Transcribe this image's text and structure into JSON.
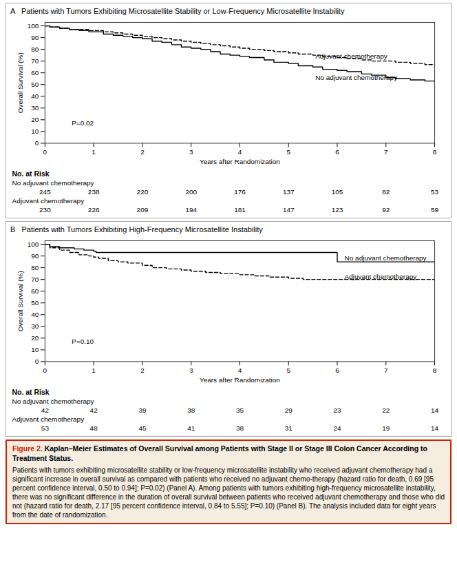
{
  "chart_data": [
    {
      "type": "line",
      "title": "A   Patients with Tumors Exhibiting Microsatellite Stability or Low-Frequency Microsatellite Instability",
      "xlabel": "Years after Randomization",
      "ylabel": "Overall Survival (%)",
      "xlim": [
        0,
        8
      ],
      "xticks": [
        0,
        1,
        2,
        3,
        4,
        5,
        6,
        7,
        8
      ],
      "ylim": [
        0,
        103
      ],
      "yticks": [
        0,
        10,
        20,
        30,
        40,
        50,
        60,
        70,
        80,
        90,
        100
      ],
      "grid": false,
      "series": [
        {
          "name": "No adjuvant chemotherapy",
          "color": "black",
          "line_style": "solid",
          "x": [
            0,
            0.1,
            0.3,
            0.5,
            0.7,
            0.9,
            1.0,
            1.2,
            1.4,
            1.6,
            1.8,
            2.0,
            2.2,
            2.4,
            2.6,
            2.8,
            3.0,
            3.2,
            3.4,
            3.6,
            3.8,
            4.0,
            4.2,
            4.5,
            4.7,
            5.0,
            5.2,
            5.5,
            5.7,
            6.0,
            6.2,
            6.5,
            6.7,
            7.0,
            7.2,
            7.5,
            7.8,
            8.0
          ],
          "values": [
            100,
            99,
            98,
            97,
            96,
            95,
            95,
            93,
            92,
            91,
            90,
            89,
            87,
            86,
            84,
            82,
            81,
            80,
            78,
            76,
            75,
            74,
            73,
            71,
            69,
            68,
            66,
            65,
            63,
            62,
            61,
            59,
            58,
            56,
            55,
            54,
            53,
            52
          ]
        },
        {
          "name": "Adjuvant chemotherapy",
          "color": "black",
          "line_style": "dashed",
          "x": [
            0,
            0.1,
            0.3,
            0.5,
            0.7,
            0.9,
            1.0,
            1.2,
            1.4,
            1.6,
            1.8,
            2.0,
            2.2,
            2.4,
            2.6,
            2.8,
            3.0,
            3.2,
            3.4,
            3.6,
            3.8,
            4.0,
            4.2,
            4.5,
            4.7,
            5.0,
            5.2,
            5.5,
            5.7,
            6.0,
            6.2,
            6.5,
            6.7,
            7.0,
            7.2,
            7.5,
            7.8,
            8.0
          ],
          "values": [
            100,
            99,
            98,
            97,
            97,
            96,
            96,
            95,
            94,
            93,
            92,
            91,
            90,
            89,
            88,
            87,
            86,
            85,
            84,
            83,
            82,
            81,
            80,
            79,
            78,
            77,
            76,
            75,
            74,
            73,
            72,
            71,
            70,
            70,
            69,
            68,
            67,
            67
          ]
        }
      ],
      "annotations": [
        {
          "text": "P=0.02",
          "x": 0.55,
          "y": 17
        },
        {
          "text": "No adjuvant chemotherapy",
          "x": 5.55,
          "y": 56
        },
        {
          "text": "Adjuvant chemotherapy",
          "x": 5.55,
          "y": 74
        }
      ],
      "risk_table": {
        "title": "No. at Risk",
        "x": [
          0,
          1,
          2,
          3,
          4,
          5,
          6,
          7,
          8
        ],
        "rows": [
          {
            "name": "No adjuvant chemotherapy",
            "values": [
              245,
              238,
              220,
              200,
              176,
              137,
              105,
              82,
              53
            ]
          },
          {
            "name": "Adjuvant chemotherapy",
            "values": [
              230,
              226,
              209,
              194,
              181,
              147,
              123,
              92,
              59
            ]
          }
        ]
      }
    },
    {
      "type": "line",
      "title": "B   Patients with Tumors Exhibiting High-Frequency Microsatellite Instability",
      "xlabel": "Years after Randomization",
      "ylabel": "Overall Survival (%)",
      "xlim": [
        0,
        8
      ],
      "xticks": [
        0,
        1,
        2,
        3,
        4,
        5,
        6,
        7,
        8
      ],
      "ylim": [
        0,
        103
      ],
      "yticks": [
        0,
        10,
        20,
        30,
        40,
        50,
        60,
        70,
        80,
        90,
        100
      ],
      "grid": false,
      "series": [
        {
          "name": "No adjuvant chemotherapy",
          "color": "black",
          "line_style": "solid",
          "x": [
            0,
            0.1,
            0.3,
            0.6,
            0.8,
            1.0,
            1.05,
            1.1,
            1.3,
            1.6,
            2.0,
            2.5,
            3.0,
            3.5,
            4.0,
            4.5,
            5.0,
            5.5,
            5.7,
            6.0,
            6.5,
            7.0,
            7.5,
            8.0
          ],
          "values": [
            100,
            98,
            97,
            96,
            95,
            94,
            93,
            93,
            93,
            93,
            93,
            93,
            93,
            93,
            93,
            93,
            93,
            93,
            93,
            85,
            85,
            85,
            85,
            85
          ]
        },
        {
          "name": "Adjuvant chemotherapy",
          "color": "black",
          "line_style": "dashed",
          "x": [
            0,
            0.1,
            0.3,
            0.5,
            0.7,
            0.9,
            1.0,
            1.1,
            1.3,
            1.5,
            1.7,
            2.0,
            2.2,
            2.5,
            2.8,
            3.0,
            3.3,
            3.6,
            4.0,
            4.3,
            4.6,
            5.0,
            5.3,
            5.6,
            6.0,
            6.5,
            7.0,
            7.5,
            8.0
          ],
          "values": [
            100,
            97,
            95,
            93,
            91,
            90,
            89,
            88,
            86,
            85,
            84,
            82,
            80,
            79,
            78,
            77,
            76,
            75,
            74,
            73,
            72,
            71,
            70,
            70,
            70,
            70,
            70,
            70,
            70
          ]
        }
      ],
      "annotations": [
        {
          "text": "P=0.10",
          "x": 0.55,
          "y": 17
        },
        {
          "text": "No adjuvant chemotherapy",
          "x": 6.15,
          "y": 88
        },
        {
          "text": "Adjuvant chemotherapy",
          "x": 6.15,
          "y": 72
        }
      ],
      "risk_table": {
        "title": "No. at Risk",
        "x": [
          0,
          1,
          2,
          3,
          4,
          5,
          6,
          7,
          8
        ],
        "rows": [
          {
            "name": "No adjuvant chemotherapy",
            "values": [
              42,
              42,
              39,
              38,
              35,
              29,
              23,
              22,
              14
            ]
          },
          {
            "name": "Adjuvant chemotherapy",
            "values": [
              53,
              48,
              45,
              41,
              38,
              31,
              24,
              19,
              14
            ]
          }
        ]
      }
    }
  ],
  "caption": {
    "label": "Figure 2.",
    "label_color": "#cc2200",
    "title": " Kaplan–Meier Estimates of Overall Survival among Patients with Stage II or Stage III Colon Cancer According to Treatment Status.",
    "text": "Patients with tumors exhibiting microsatellite stability or low-frequency microsatellite instability who received adjuvant chemotherapy had a significant increase in overall survival as compared with patients who received no adjuvant chemo-therapy (hazard ratio for death, 0.69 [95 percent confidence interval, 0.50 to 0.94]; P=0.02) (Panel A). Among patients with tumors exhibiting high-frequency microsatellite instability, there was no significant difference in the duration of overall survival between patients who received adjuvant chemotherapy and those who did not (hazard ratio for death, 2.17 [95 percent confidence interval, 0.84 to 5.55]; P=0.10) (Panel B). The analysis included data for eight years from the date of randomization.",
    "background": "#f5ede0",
    "border_color": "#cc2200"
  }
}
